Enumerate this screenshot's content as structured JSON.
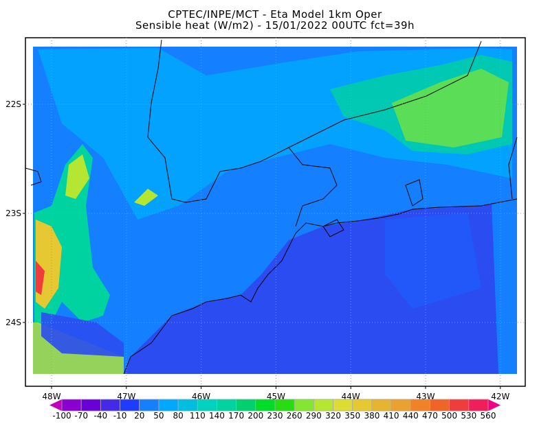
{
  "header": {
    "line1": "CPTEC/INPE/MCT -  Eta Model 1km Oper",
    "line2": "Sensible heat (W/m2) - 15/01/2022 00UTC fct=39h"
  },
  "map": {
    "lon_ticks": [
      "48W",
      "47W",
      "46W",
      "45W",
      "44W",
      "43W",
      "42W"
    ],
    "lat_ticks": [
      "22S",
      "23S",
      "24S"
    ],
    "ocean_color": "#2a4cf0",
    "land_color": "#1480ff"
  },
  "colorbar": {
    "labels": [
      "-100",
      "-70",
      "-40",
      "-10",
      "20",
      "50",
      "80",
      "110",
      "140",
      "170",
      "200",
      "230",
      "260",
      "290",
      "320",
      "350",
      "380",
      "410",
      "440",
      "470",
      "500",
      "530",
      "560"
    ],
    "colors": [
      "#8a00d0",
      "#6a00d8",
      "#4628e8",
      "#1e3cff",
      "#1480ff",
      "#00a8ff",
      "#00bee0",
      "#00d2c0",
      "#00d2a0",
      "#00d070",
      "#00dc28",
      "#28dc14",
      "#82e632",
      "#b4e632",
      "#dcdc32",
      "#e6c832",
      "#e6b432",
      "#eba032",
      "#f08228",
      "#f06428",
      "#f03c3c",
      "#f01e5a"
    ],
    "under_color": "#c000c0",
    "over_color": "#f00082"
  }
}
